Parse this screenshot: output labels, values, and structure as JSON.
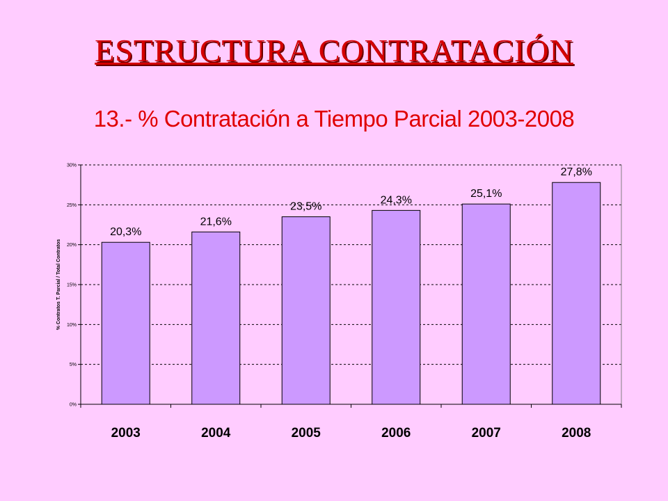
{
  "slide": {
    "title": "ESTRUCTURA CONTRATACIÓN"
  },
  "chart_data": {
    "type": "bar",
    "title": "13.- % Contratación a Tiempo Parcial 2003-2008",
    "xlabel": "",
    "ylabel": "% Contratos T. Parcial / Total Contratos",
    "categories": [
      "2003",
      "2004",
      "2005",
      "2006",
      "2007",
      "2008"
    ],
    "values": [
      20.3,
      21.6,
      23.5,
      24.3,
      25.1,
      27.8
    ],
    "data_labels": [
      "20,3%",
      "21,6%",
      "23,5%",
      "24,3%",
      "25,1%",
      "27,8%"
    ],
    "ylim": [
      0,
      30
    ],
    "yticks": [
      0,
      5,
      10,
      15,
      20,
      25,
      30
    ],
    "ytick_labels": [
      "0%",
      "5%",
      "10%",
      "15%",
      "20%",
      "25%",
      "30%"
    ],
    "grid": true,
    "legend": "none",
    "colors": {
      "bar_fill": "#cc99ff",
      "bar_stroke": "#000000",
      "plot_background": "#ffccff",
      "grid": "#000000"
    }
  }
}
